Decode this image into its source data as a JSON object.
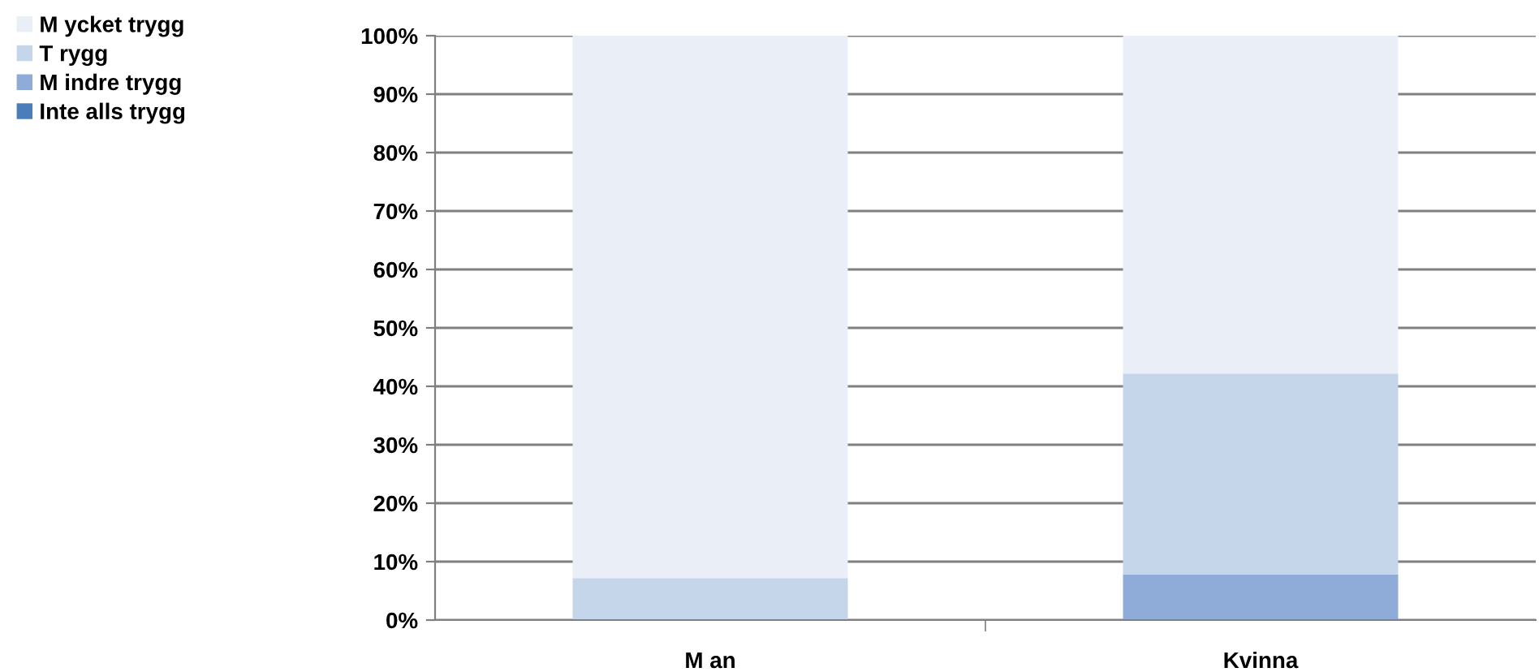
{
  "chart_data": {
    "type": "bar",
    "stacked": true,
    "categories": [
      "M an",
      "Kvinna"
    ],
    "series": [
      {
        "name": "Inte alls trygg",
        "color": "#4a7ebb",
        "values": [
          0,
          0
        ]
      },
      {
        "name": "M indre trygg",
        "color": "#8eacd7",
        "values": [
          0,
          7.8
        ]
      },
      {
        "name": "T rygg",
        "color": "#c5d5ea",
        "values": [
          7.2,
          34.4
        ]
      },
      {
        "name": "M ycket trygg",
        "color": "#eaeff7",
        "values": [
          92.8,
          57.8
        ]
      }
    ],
    "ylim": [
      0,
      100
    ],
    "yticks": [
      {
        "value": 0,
        "label": "0%"
      },
      {
        "value": 10,
        "label": "10%"
      },
      {
        "value": 20,
        "label": "20%"
      },
      {
        "value": 30,
        "label": "30%"
      },
      {
        "value": 40,
        "label": "40%"
      },
      {
        "value": 50,
        "label": "50%"
      },
      {
        "value": 60,
        "label": "60%"
      },
      {
        "value": 70,
        "label": "70%"
      },
      {
        "value": 80,
        "label": "80%"
      },
      {
        "value": 90,
        "label": "90%"
      },
      {
        "value": 100,
        "label": "100%"
      }
    ],
    "grid": "y",
    "legend": "top left"
  }
}
